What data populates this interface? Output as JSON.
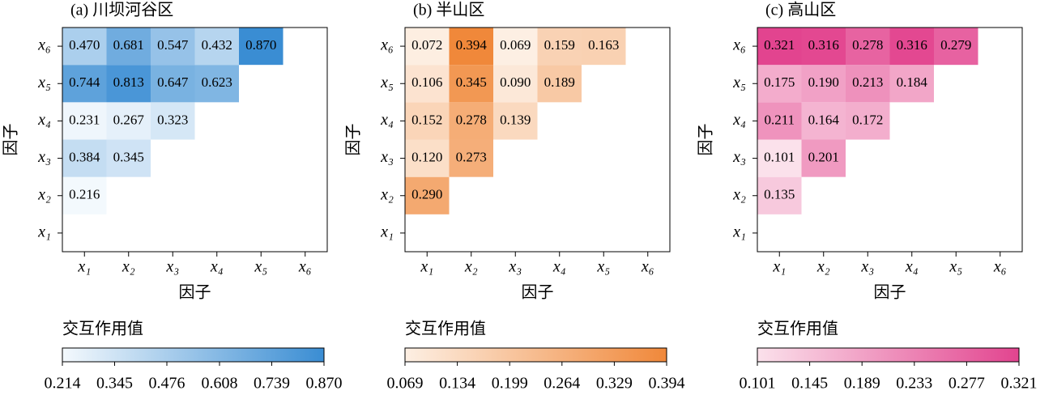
{
  "chart_data": [
    {
      "type": "heatmap",
      "title": "(a) 川坝河谷区",
      "x_label": "因子",
      "y_label": "因子",
      "x_categories": [
        "x₁",
        "x₂",
        "x₃",
        "x₄",
        "x₅",
        "x₆"
      ],
      "y_categories": [
        "x₁",
        "x₂",
        "x₃",
        "x₄",
        "x₅",
        "x₆"
      ],
      "values": [
        [
          null,
          null,
          null,
          null,
          null,
          null
        ],
        [
          0.216,
          null,
          null,
          null,
          null,
          null
        ],
        [
          0.384,
          0.345,
          null,
          null,
          null,
          null
        ],
        [
          0.231,
          0.267,
          0.323,
          null,
          null,
          null
        ],
        [
          0.744,
          0.813,
          0.647,
          0.623,
          null,
          null
        ],
        [
          0.47,
          0.681,
          0.547,
          0.432,
          0.87,
          null
        ]
      ],
      "value_labels": [
        [
          null,
          null,
          null,
          null,
          null,
          null
        ],
        [
          "0.216",
          null,
          null,
          null,
          null,
          null
        ],
        [
          "0.384",
          "0.345",
          null,
          null,
          null,
          null
        ],
        [
          "0.231",
          "0.267",
          "0.323",
          null,
          null,
          null
        ],
        [
          "0.744",
          "0.813",
          "0.647",
          "0.623",
          null,
          null
        ],
        [
          "0.470",
          "0.681",
          "0.547",
          "0.432",
          "0.870",
          null
        ]
      ],
      "colorbar_label": "交互作用值",
      "clim": [
        0.214,
        0.87
      ],
      "cticks": [
        0.214,
        0.345,
        0.476,
        0.608,
        0.739,
        {
          "value": 0.87,
          "label": "0.870"
        }
      ],
      "colors": [
        "#f4f9fd",
        "#3a8dd3"
      ]
    },
    {
      "type": "heatmap",
      "title": "(b) 半山区",
      "x_label": "因子",
      "y_label": "因子",
      "x_categories": [
        "x₁",
        "x₂",
        "x₃",
        "x₄",
        "x₅",
        "x₆"
      ],
      "y_categories": [
        "x₁",
        "x₂",
        "x₃",
        "x₄",
        "x₅",
        "x₆"
      ],
      "values": [
        [
          null,
          null,
          null,
          null,
          null,
          null
        ],
        [
          0.29,
          null,
          null,
          null,
          null,
          null
        ],
        [
          0.12,
          0.273,
          null,
          null,
          null,
          null
        ],
        [
          0.152,
          0.278,
          0.139,
          null,
          null,
          null
        ],
        [
          0.106,
          0.345,
          0.09,
          0.189,
          null,
          null
        ],
        [
          0.072,
          0.394,
          0.069,
          0.159,
          0.163,
          null
        ]
      ],
      "value_labels": [
        [
          null,
          null,
          null,
          null,
          null,
          null
        ],
        [
          "0.290",
          null,
          null,
          null,
          null,
          null
        ],
        [
          "0.120",
          "0.273",
          null,
          null,
          null,
          null
        ],
        [
          "0.152",
          "0.278",
          "0.139",
          null,
          null,
          null
        ],
        [
          "0.106",
          "0.345",
          "0.090",
          "0.189",
          null,
          null
        ],
        [
          "0.072",
          "0.394",
          "0.069",
          "0.159",
          "0.163",
          null
        ]
      ],
      "colorbar_label": "交互作用值",
      "clim": [
        0.069,
        0.394
      ],
      "cticks": [
        0.069,
        0.134,
        0.199,
        0.264,
        0.329,
        0.394
      ],
      "colors": [
        "#fdefe3",
        "#f0883a"
      ]
    },
    {
      "type": "heatmap",
      "title": "(c) 高山区",
      "x_label": "因子",
      "y_label": "因子",
      "x_categories": [
        "x₁",
        "x₂",
        "x₃",
        "x₄",
        "x₅",
        "x₆"
      ],
      "y_categories": [
        "x₁",
        "x₂",
        "x₃",
        "x₄",
        "x₅",
        "x₆"
      ],
      "values": [
        [
          null,
          null,
          null,
          null,
          null,
          null
        ],
        [
          0.135,
          null,
          null,
          null,
          null,
          null
        ],
        [
          0.101,
          0.201,
          null,
          null,
          null,
          null
        ],
        [
          0.211,
          0.164,
          0.172,
          null,
          null,
          null
        ],
        [
          0.175,
          0.19,
          0.213,
          0.184,
          null,
          null
        ],
        [
          0.321,
          0.316,
          0.278,
          0.316,
          0.279,
          null
        ]
      ],
      "value_labels": [
        [
          null,
          null,
          null,
          null,
          null,
          null
        ],
        [
          "0.135",
          null,
          null,
          null,
          null,
          null
        ],
        [
          "0.101",
          "0.201",
          null,
          null,
          null,
          null
        ],
        [
          "0.211",
          "0.164",
          "0.172",
          null,
          null,
          null
        ],
        [
          "0.175",
          "0.190",
          "0.213",
          "0.184",
          null,
          null
        ],
        [
          "0.321",
          "0.316",
          "0.278",
          "0.316",
          "0.279",
          null
        ]
      ],
      "colorbar_label": "交互作用值",
      "clim": [
        0.101,
        0.321
      ],
      "cticks": [
        0.101,
        0.145,
        0.189,
        0.233,
        0.277,
        0.321
      ],
      "colors": [
        "#fbe1eb",
        "#e2448f"
      ]
    }
  ]
}
